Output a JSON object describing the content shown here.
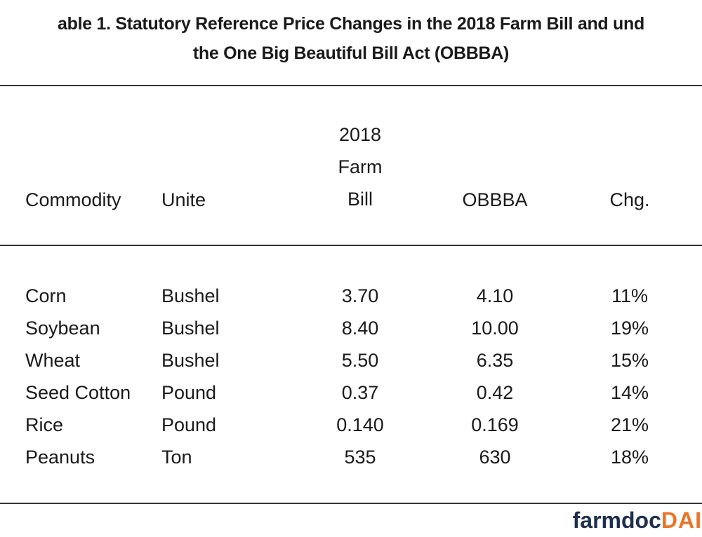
{
  "header": {
    "title_lines": [
      "able 1. Statutory Reference Price Changes in the 2018 Farm Bill and und",
      "the One Big Beautiful Bill Act (OBBBA)"
    ]
  },
  "table": {
    "columns": [
      "Commodity",
      "Unite",
      "2018 Farm Bill",
      "OBBBA",
      "Chg."
    ],
    "rows": [
      [
        "Corn",
        "Bushel",
        "3.70",
        "4.10",
        "11%"
      ],
      [
        "Soybean",
        "Bushel",
        "8.40",
        "10.00",
        "19%"
      ],
      [
        "Wheat",
        "Bushel",
        "5.50",
        "6.35",
        "15%"
      ],
      [
        "Seed Cotton",
        "Pound",
        "0.37",
        "0.42",
        "14%"
      ],
      [
        "Rice",
        "Pound",
        "0.140",
        "0.169",
        "21%"
      ],
      [
        "Peanuts",
        "Ton",
        "535",
        "630",
        "18%"
      ]
    ]
  },
  "footer": {
    "logo": [
      "farmdoc",
      "DAI"
    ]
  }
}
